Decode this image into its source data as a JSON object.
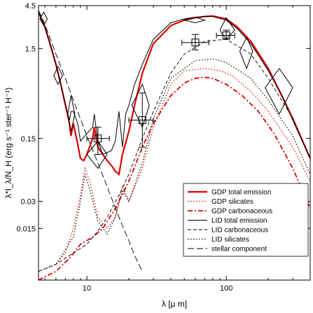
{
  "chart_data": {
    "type": "line",
    "title": "",
    "xlabel": "λ [μ m]",
    "ylabel": "λ*I_λ/N_H (erg s⁻¹ ster⁻¹ H⁻¹)",
    "xscale": "log",
    "yscale": "log",
    "xlim": [
      4.5,
      400
    ],
    "ylim": [
      0.004,
      4.5
    ],
    "xticks": [
      {
        "value": 10,
        "label": "10"
      },
      {
        "value": 100,
        "label": "100"
      }
    ],
    "yticks": [
      {
        "value": 0.015,
        "label": "0.015"
      },
      {
        "value": 0.03,
        "label": "0.03"
      },
      {
        "value": 0.15,
        "label": "0.15"
      },
      {
        "value": 1.5,
        "label": "1.5"
      },
      {
        "value": 4.5,
        "label": "4.5"
      }
    ],
    "legend_position": "bottom-right",
    "series": [
      {
        "name": "GDP total emission",
        "color": "#e00000",
        "style": "solid-thick",
        "x": [
          4.5,
          5,
          5.5,
          6,
          6.5,
          7,
          7.5,
          7.7,
          8,
          8.6,
          9,
          9.5,
          10,
          11,
          11.3,
          12,
          13,
          14,
          15,
          16,
          17,
          18,
          20,
          22,
          25,
          30,
          40,
          50,
          60,
          70,
          80,
          100,
          120,
          150,
          200,
          250,
          300,
          400
        ],
        "y": [
          3.8,
          2.6,
          1.6,
          1.0,
          0.6,
          0.36,
          0.22,
          0.16,
          0.22,
          0.13,
          0.09,
          0.085,
          0.1,
          0.15,
          0.2,
          0.12,
          0.1,
          0.085,
          0.075,
          0.065,
          0.06,
          0.1,
          0.18,
          0.35,
          0.8,
          1.7,
          2.7,
          3.1,
          3.3,
          3.4,
          3.45,
          3.2,
          2.6,
          1.8,
          0.9,
          0.45,
          0.25,
          0.09
        ]
      },
      {
        "name": "GDP silicates",
        "color": "#e00000",
        "style": "dotted",
        "x": [
          4.5,
          6,
          7,
          8,
          9,
          9.7,
          10.5,
          12,
          14,
          16,
          18,
          20,
          25,
          30,
          40,
          50,
          70,
          90,
          110,
          150,
          200,
          300,
          400
        ],
        "y": [
          0.005,
          0.006,
          0.008,
          0.015,
          0.035,
          0.07,
          0.05,
          0.02,
          0.015,
          0.02,
          0.045,
          0.03,
          0.07,
          0.2,
          0.6,
          0.85,
          0.9,
          0.85,
          0.75,
          0.5,
          0.3,
          0.12,
          0.05
        ]
      },
      {
        "name": "GDP carbonaceous",
        "color": "#e00000",
        "style": "dashdot",
        "x": [
          4.5,
          6,
          7.5,
          9,
          11,
          13,
          16,
          20,
          25,
          30,
          40,
          50,
          60,
          70,
          80,
          100,
          130,
          170,
          220,
          300,
          400
        ],
        "y": [
          0.004,
          0.005,
          0.007,
          0.01,
          0.012,
          0.015,
          0.025,
          0.05,
          0.12,
          0.22,
          0.45,
          0.62,
          0.7,
          0.72,
          0.7,
          0.6,
          0.45,
          0.3,
          0.17,
          0.07,
          0.025
        ]
      },
      {
        "name": "LID total emission",
        "color": "#000000",
        "style": "solid",
        "x": [
          4.5,
          5,
          5.5,
          6,
          6.5,
          7,
          7.5,
          7.7,
          8,
          8.6,
          9,
          10,
          11,
          11.3,
          12,
          13,
          15,
          16,
          17,
          18,
          19,
          20,
          22,
          25,
          30,
          40,
          50,
          60,
          70,
          80,
          100,
          120,
          150,
          200,
          250,
          300,
          400
        ],
        "y": [
          3.8,
          2.6,
          1.6,
          1.0,
          0.6,
          0.36,
          0.24,
          0.3,
          0.3,
          0.22,
          0.14,
          0.17,
          0.2,
          0.28,
          0.14,
          0.1,
          0.11,
          0.14,
          0.3,
          0.12,
          0.28,
          0.35,
          0.6,
          1.0,
          1.9,
          2.9,
          3.2,
          3.35,
          3.4,
          3.4,
          3.1,
          2.5,
          1.7,
          0.85,
          0.45,
          0.24,
          0.09
        ]
      },
      {
        "name": "LID carbonaceous",
        "color": "#000000",
        "style": "dashed",
        "x": [
          4.5,
          6,
          8,
          10,
          12,
          14,
          17,
          20,
          25,
          30,
          40,
          50,
          70,
          100,
          150,
          200,
          300,
          400
        ],
        "y": [
          0.005,
          0.006,
          0.008,
          0.01,
          0.014,
          0.02,
          0.035,
          0.06,
          0.15,
          0.3,
          0.8,
          1.3,
          1.8,
          1.9,
          1.3,
          0.7,
          0.25,
          0.09
        ]
      },
      {
        "name": "LID silicates",
        "color": "#000000",
        "style": "dotted",
        "x": [
          4.5,
          6,
          8,
          9,
          9.7,
          10.5,
          12,
          14,
          16,
          18,
          20,
          25,
          30,
          40,
          60,
          80,
          100,
          150,
          200,
          300,
          400
        ],
        "y": [
          0.005,
          0.006,
          0.012,
          0.03,
          0.06,
          0.04,
          0.018,
          0.013,
          0.02,
          0.04,
          0.03,
          0.08,
          0.25,
          0.7,
          1.1,
          1.15,
          1.05,
          0.7,
          0.4,
          0.16,
          0.06
        ]
      },
      {
        "name": "stellar component",
        "color": "#000000",
        "style": "longdash",
        "x": [
          4.5,
          5,
          6,
          7,
          8,
          10,
          12,
          15,
          18,
          20,
          22,
          25
        ],
        "y": [
          4.0,
          2.8,
          1.3,
          0.7,
          0.4,
          0.16,
          0.08,
          0.033,
          0.016,
          0.011,
          0.0075,
          0.005
        ]
      }
    ],
    "observations": {
      "diamonds": [
        {
          "x": 4.9,
          "y": 3.2,
          "x1": 4.6,
          "x2": 5.2,
          "y1": 2.7,
          "y2": 3.8
        },
        {
          "x": 6.2,
          "y": 0.75,
          "x1": 5.8,
          "x2": 6.7,
          "y1": 0.6,
          "y2": 0.95
        },
        {
          "x": 7.7,
          "y": 0.28,
          "x1": 7.3,
          "x2": 8.2,
          "y1": 0.18,
          "y2": 0.45
        },
        {
          "x": 12.0,
          "y": 0.1,
          "x1": 10.0,
          "x2": 14.0,
          "y1": 0.07,
          "y2": 0.14
        },
        {
          "x": 25.0,
          "y": 0.35,
          "x1": 21.0,
          "x2": 28.0,
          "y1": 0.2,
          "y2": 0.6
        },
        {
          "x": 60.0,
          "y": 3.1,
          "x1": 50.0,
          "x2": 70.0,
          "y1": 2.9,
          "y2": 3.35
        },
        {
          "x": 100.0,
          "y": 2.4,
          "x1": 90.0,
          "x2": 115.0,
          "y1": 1.9,
          "y2": 3.3
        },
        {
          "x": 140.0,
          "y": 1.4,
          "x1": 125.0,
          "x2": 155.0,
          "y1": 0.9,
          "y2": 2.0
        },
        {
          "x": 240.0,
          "y": 0.55,
          "x1": 190.0,
          "x2": 300.0,
          "y1": 0.28,
          "y2": 0.9
        }
      ],
      "squares": [
        {
          "x": 12.0,
          "y": 0.15,
          "xerr": [
            10.0,
            14.5
          ],
          "yerr": [
            0.1,
            0.2
          ]
        },
        {
          "x": 25.0,
          "y": 0.24,
          "xerr": [
            20.0,
            30.0
          ],
          "yerr": [
            0.12,
            0.48
          ]
        },
        {
          "x": 60.0,
          "y": 1.75,
          "xerr": [
            48.0,
            75.0
          ],
          "yerr": [
            1.45,
            2.15
          ]
        },
        {
          "x": 100.0,
          "y": 2.1,
          "xerr": [
            85.0,
            115.0
          ],
          "yerr": [
            1.9,
            2.4
          ]
        }
      ]
    }
  }
}
